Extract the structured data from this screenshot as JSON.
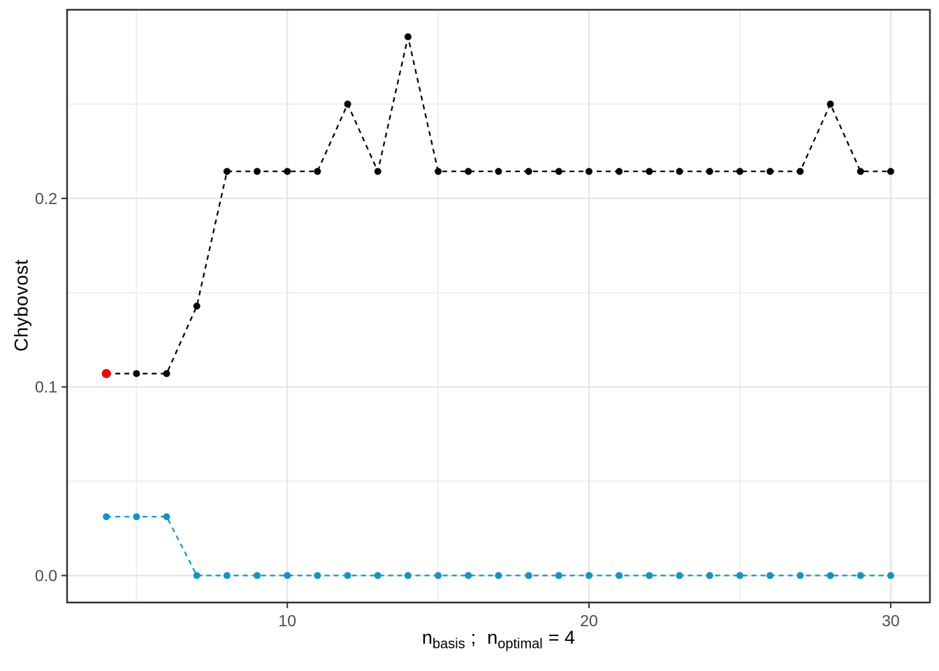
{
  "chart_data": {
    "type": "line",
    "title": "",
    "ylabel": "Chybovost",
    "xlabel_parts": {
      "var1": "n",
      "sub1": "basis",
      "separator": ";",
      "var2": "n",
      "sub2": "optimal",
      "equals": "= 4"
    },
    "x": [
      4,
      5,
      6,
      7,
      8,
      9,
      10,
      11,
      12,
      13,
      14,
      15,
      16,
      17,
      18,
      19,
      20,
      21,
      22,
      23,
      24,
      25,
      26,
      27,
      28,
      29,
      30
    ],
    "series": [
      {
        "name": "test-error-black",
        "color": "#000000",
        "linestyle": "dashed",
        "marker_radius": 5,
        "values": [
          0.1071,
          0.1071,
          0.1071,
          0.1429,
          0.2143,
          0.2143,
          0.2143,
          0.2143,
          0.25,
          0.2143,
          0.2857,
          0.2143,
          0.2143,
          0.2143,
          0.2143,
          0.2143,
          0.2143,
          0.2143,
          0.2143,
          0.2143,
          0.2143,
          0.2143,
          0.2143,
          0.2143,
          0.25,
          0.2143,
          0.2143
        ]
      },
      {
        "name": "train-error-blue",
        "color": "#0F95C8",
        "linestyle": "dashed",
        "marker_radius": 5,
        "values": [
          0.0312,
          0.0312,
          0.0312,
          0,
          0,
          0,
          0,
          0,
          0,
          0,
          0,
          0,
          0,
          0,
          0,
          0,
          0,
          0,
          0,
          0,
          0,
          0,
          0,
          0,
          0,
          0,
          0
        ]
      }
    ],
    "highlight_point": {
      "name": "optimal-point-red",
      "x": 4,
      "y": 0.1071,
      "color": "#FF0000",
      "radius": 6.5
    },
    "x_axis": {
      "range": [
        2.7,
        31.3
      ],
      "major_ticks": [
        {
          "v": 10,
          "label": "10"
        },
        {
          "v": 20,
          "label": "20"
        },
        {
          "v": 30,
          "label": "30"
        }
      ],
      "minor_gridlines": [
        5,
        15,
        25
      ]
    },
    "y_axis": {
      "range": [
        -0.0143,
        0.3
      ],
      "major_ticks": [
        {
          "v": 0.0,
          "label": "0.0"
        },
        {
          "v": 0.1,
          "label": "0.1"
        },
        {
          "v": 0.2,
          "label": "0.2"
        }
      ],
      "minor_gridlines": [
        0.05,
        0.15,
        0.25
      ]
    },
    "grid": true,
    "legend": false,
    "colors": {
      "background": "#FFFFFF",
      "panel_background": "#FFFFFF",
      "grid_major": "#E3E3E3",
      "grid_minor": "#EFEFEF",
      "panel_border": "#333333",
      "tick": "#333333",
      "tick_label": "#4D4D4D"
    }
  }
}
